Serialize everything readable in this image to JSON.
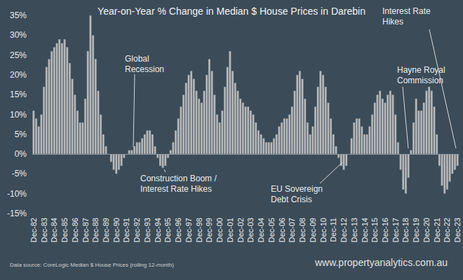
{
  "chart_data": {
    "type": "bar",
    "title": "Year-on-Year % Change in Median $ House Prices in Darebin",
    "categories": [
      "Dec-82",
      null,
      null,
      null,
      "Dec-83",
      null,
      null,
      null,
      "Dec-84",
      null,
      null,
      null,
      "Dec-85",
      null,
      null,
      null,
      "Dec-86",
      null,
      null,
      null,
      "Dec-87",
      null,
      null,
      null,
      "Dec-88",
      null,
      null,
      null,
      "Dec-89",
      null,
      null,
      null,
      "Dec-90",
      null,
      null,
      null,
      "Dec-91",
      null,
      null,
      null,
      "Dec-92",
      null,
      null,
      null,
      "Dec-93",
      null,
      null,
      null,
      "Dec-94",
      null,
      null,
      null,
      "Dec-95",
      null,
      null,
      null,
      "Dec-96",
      null,
      null,
      null,
      "Dec-97",
      null,
      null,
      null,
      "Dec-98",
      null,
      null,
      null,
      "Dec-99",
      null,
      null,
      null,
      "Dec-00",
      null,
      null,
      null,
      "Dec-01",
      null,
      null,
      null,
      "Dec-02",
      null,
      null,
      null,
      "Dec-03",
      null,
      null,
      null,
      "Dec-04",
      null,
      null,
      null,
      "Dec-05",
      null,
      null,
      null,
      "Dec-06",
      null,
      null,
      null,
      "Dec-07",
      null,
      null,
      null,
      "Dec-08",
      null,
      null,
      null,
      "Dec-09",
      null,
      null,
      null,
      "Dec-10",
      null,
      null,
      null,
      "Dec-11",
      null,
      null,
      null,
      "Dec-12",
      null,
      null,
      null,
      "Dec-13",
      null,
      null,
      null,
      "Dec-14",
      null,
      null,
      null,
      "Dec-15",
      null,
      null,
      null,
      "Dec-16",
      null,
      null,
      null,
      "Dec-17",
      null,
      null,
      null,
      "Dec-18",
      null,
      null,
      null,
      "Dec-19",
      null,
      null,
      null,
      "Dec-20",
      null,
      null,
      null,
      "Dec-21",
      null,
      null,
      null,
      "Dec-22",
      null,
      null,
      null,
      "Dec-23"
    ],
    "values": [
      11,
      9,
      7,
      10,
      17,
      22,
      24,
      26,
      27,
      28,
      29,
      28,
      29,
      27,
      23,
      19,
      15,
      11,
      8,
      8,
      14,
      26,
      35,
      30,
      24,
      16,
      10,
      5,
      2,
      0,
      -2,
      -4,
      -5,
      -4,
      -3,
      -1,
      0,
      1,
      1,
      2,
      3,
      3,
      4,
      5,
      6,
      6,
      5,
      2,
      -1,
      -3,
      -3.5,
      -3,
      -1,
      1,
      3,
      6,
      9,
      12,
      15,
      18,
      20,
      21,
      19,
      16,
      14,
      13,
      16,
      20,
      24,
      21,
      15,
      10,
      8,
      11,
      17,
      22,
      26,
      21,
      18,
      16,
      14,
      13,
      12,
      12,
      11,
      10,
      8,
      6,
      5,
      4,
      3,
      3,
      3,
      4,
      5,
      7,
      8,
      9,
      9,
      10,
      12,
      16,
      20,
      21,
      19,
      14,
      8,
      5,
      7,
      12,
      17,
      21,
      20,
      17,
      13,
      9,
      5,
      2,
      -1,
      -3,
      -4,
      -3,
      0,
      4,
      8,
      9,
      9,
      7,
      5,
      5,
      7,
      10,
      13,
      15,
      16,
      14,
      13,
      15,
      16,
      15,
      10,
      3,
      -4,
      -9,
      -10,
      -6,
      1,
      8,
      14,
      11,
      11,
      13,
      16,
      17,
      16,
      12,
      5,
      -3,
      -8,
      -10,
      -9,
      -7,
      -5,
      -4,
      -3
    ],
    "color": "#bdbdbd",
    "ylim": [
      -15,
      35
    ],
    "yticks": [
      {
        "value": -15,
        "label": "-15%"
      },
      {
        "value": -10,
        "label": "-10%"
      },
      {
        "value": -5,
        "label": "-5%"
      },
      {
        "value": 0,
        "label": "0%"
      },
      {
        "value": 5,
        "label": "5%"
      },
      {
        "value": 10,
        "label": "10%"
      },
      {
        "value": 15,
        "label": "15%"
      },
      {
        "value": 20,
        "label": "20%"
      },
      {
        "value": 25,
        "label": "25%"
      },
      {
        "value": 30,
        "label": "30%"
      },
      {
        "value": 35,
        "label": "35%"
      }
    ],
    "grid": false,
    "annotations": [
      {
        "text": "Global\nRecession"
      },
      {
        "text": "Construction Boom /\nInterest Rate Hikes"
      },
      {
        "text": "EU Sovereign\nDebt Crisis"
      },
      {
        "text": "Hayne Royal\nCommission"
      },
      {
        "text": "Interest Rate\nHikes"
      }
    ],
    "source": "Data source: CoreLogic Median $ House Prices (rolling 12-month)",
    "website": "www.propertyanalytics.com.au"
  }
}
